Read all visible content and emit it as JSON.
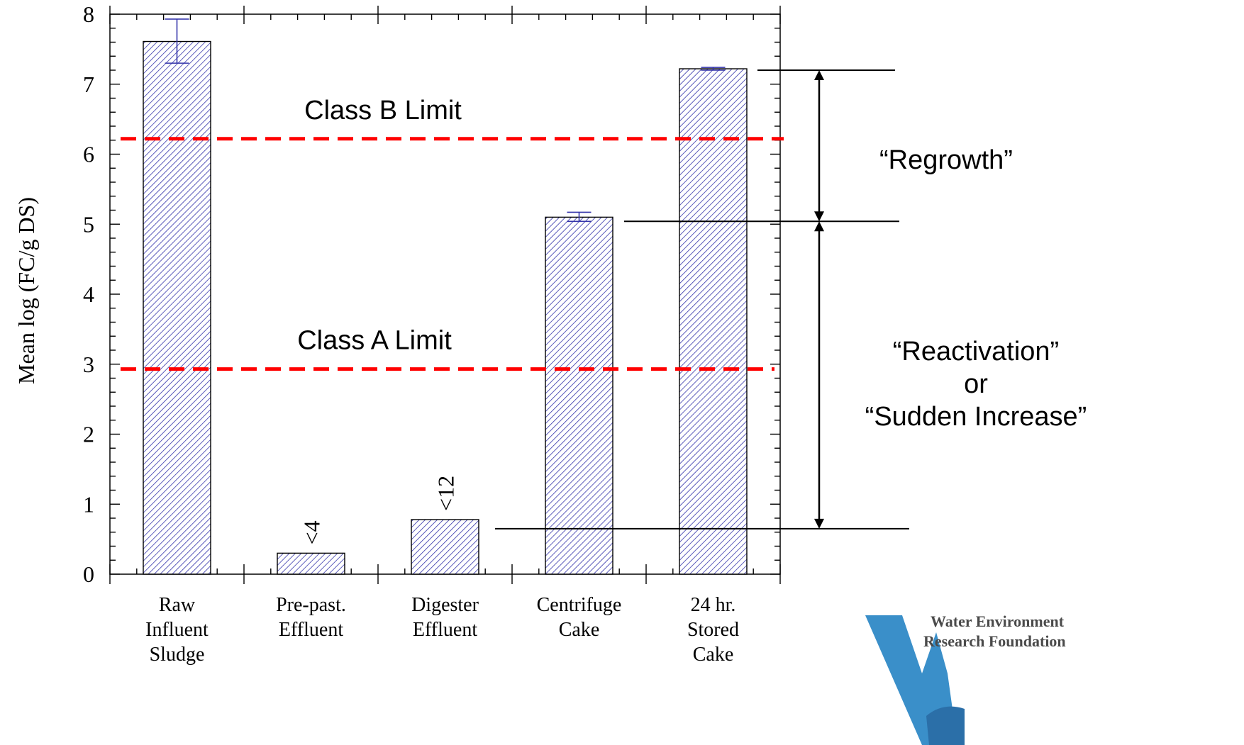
{
  "chart_data": {
    "type": "bar",
    "ylabel": "Mean log (FC/g DS)",
    "ylim": [
      0,
      8
    ],
    "yticks": [
      "0",
      "1",
      "2",
      "3",
      "4",
      "5",
      "6",
      "7",
      "8"
    ],
    "grid": false,
    "categories": [
      [
        "Raw",
        "Influent",
        "Sludge"
      ],
      [
        "Pre-past.",
        "Effluent"
      ],
      [
        "Digester",
        "Effluent"
      ],
      [
        "Centrifuge",
        "Cake"
      ],
      [
        "24 hr.",
        "Stored",
        "Cake"
      ]
    ],
    "values": [
      7.61,
      0.3,
      0.78,
      5.1,
      7.22
    ],
    "error_low": [
      7.3,
      null,
      null,
      5.04,
      7.2
    ],
    "error_high": [
      7.93,
      null,
      null,
      5.17,
      7.24
    ],
    "bar_labels": [
      "",
      "<4",
      "<12",
      "",
      ""
    ],
    "reference_lines": [
      {
        "label": "Class B Limit",
        "value": 6.22,
        "color": "#ff0000"
      },
      {
        "label": "Class A Limit",
        "value": 2.93,
        "color": "#ff0000"
      }
    ],
    "annotations": [
      {
        "text": [
          "“Regrowth”"
        ],
        "from": 5.04,
        "to": 7.2
      },
      {
        "text": [
          "“Reactivation”",
          "or",
          "“Sudden Increase”"
        ],
        "from": 0.65,
        "to": 5.04
      }
    ],
    "bar_color": "#3333aa"
  },
  "logo": {
    "line1": "Water Environment",
    "line2": "Research Foundation",
    "color": "#3a8fc9"
  }
}
